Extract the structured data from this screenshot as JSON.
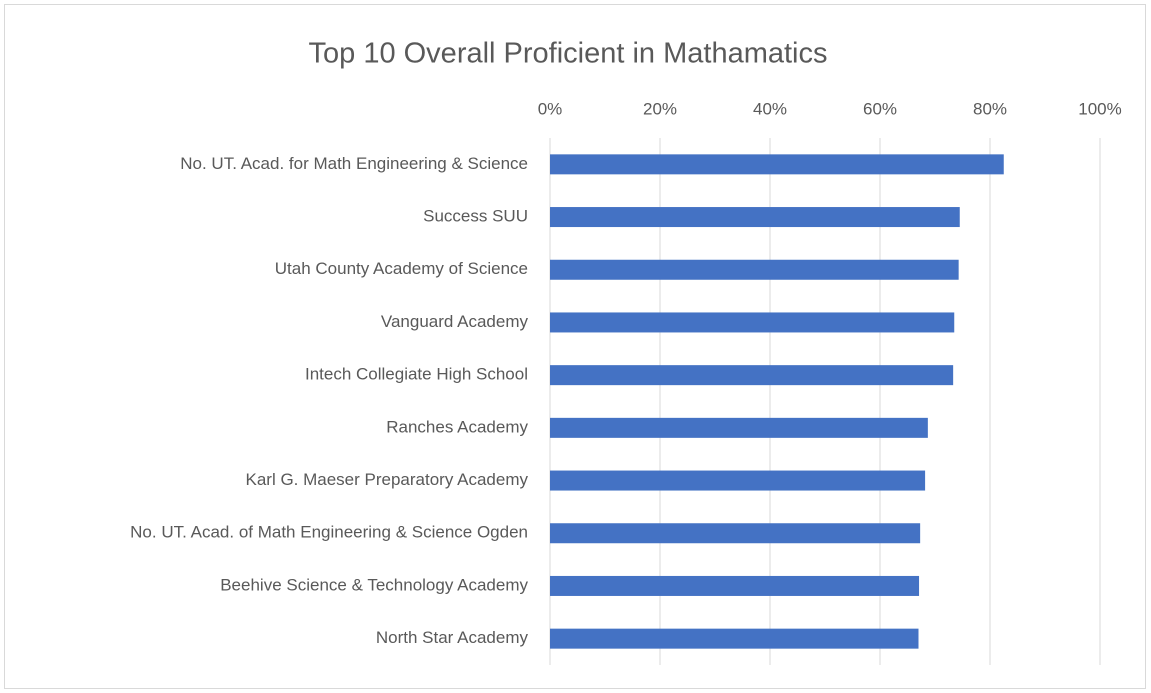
{
  "chart_data": {
    "type": "bar",
    "orientation": "horizontal",
    "title": "Top 10 Overall Proficient in Mathamatics",
    "categories": [
      "No. UT. Acad. for Math Engineering & Science",
      "Success SUU",
      "Utah County Academy of Science",
      "Vanguard Academy",
      "Intech Collegiate High School",
      "Ranches Academy",
      "Karl G. Maeser Preparatory Academy",
      "No. UT. Acad. of Math Engineering & Science Ogden",
      "Beehive Science & Technology Academy",
      "North Star Academy"
    ],
    "values": [
      82.5,
      74.5,
      74.3,
      73.5,
      73.3,
      68.7,
      68.2,
      67.3,
      67.1,
      67.0
    ],
    "color": "#4472c4",
    "xlim": [
      0,
      100
    ],
    "xticks": [
      {
        "value": 0,
        "label": "0%"
      },
      {
        "value": 20,
        "label": "20%"
      },
      {
        "value": 40,
        "label": "40%"
      },
      {
        "value": 60,
        "label": "60%"
      },
      {
        "value": 80,
        "label": "80%"
      },
      {
        "value": 100,
        "label": "100%"
      }
    ],
    "grid": true
  }
}
